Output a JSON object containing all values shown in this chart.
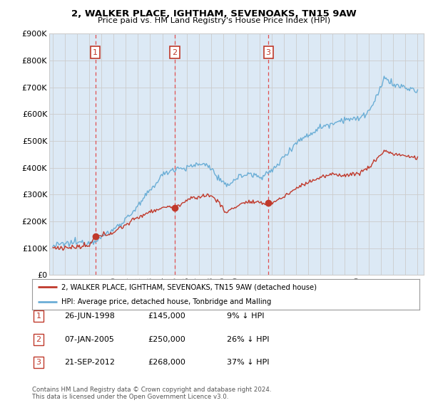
{
  "title": "2, WALKER PLACE, IGHTHAM, SEVENOAKS, TN15 9AW",
  "subtitle": "Price paid vs. HM Land Registry's House Price Index (HPI)",
  "ylim": [
    0,
    900000
  ],
  "yticks": [
    0,
    100000,
    200000,
    300000,
    400000,
    500000,
    600000,
    700000,
    800000,
    900000
  ],
  "ytick_labels": [
    "£0",
    "£100K",
    "£200K",
    "£300K",
    "£400K",
    "£500K",
    "£600K",
    "£700K",
    "£800K",
    "£900K"
  ],
  "xlim": [
    1994.7,
    2025.5
  ],
  "sales": [
    {
      "date_num": 1998.49,
      "price": 145000,
      "label": "1"
    },
    {
      "date_num": 2005.03,
      "price": 250000,
      "label": "2"
    },
    {
      "date_num": 2012.72,
      "price": 268000,
      "label": "3"
    }
  ],
  "sale_vlines": [
    1998.49,
    2005.03,
    2012.72
  ],
  "legend_line1": "2, WALKER PLACE, IGHTHAM, SEVENOAKS, TN15 9AW (detached house)",
  "legend_line2": "HPI: Average price, detached house, Tonbridge and Malling",
  "table_rows": [
    {
      "num": "1",
      "date": "26-JUN-1998",
      "price": "£145,000",
      "hpi": "9% ↓ HPI"
    },
    {
      "num": "2",
      "date": "07-JAN-2005",
      "price": "£250,000",
      "hpi": "26% ↓ HPI"
    },
    {
      "num": "3",
      "date": "21-SEP-2012",
      "price": "£268,000",
      "hpi": "37% ↓ HPI"
    }
  ],
  "footnote1": "Contains HM Land Registry data © Crown copyright and database right 2024.",
  "footnote2": "This data is licensed under the Open Government Licence v3.0.",
  "hpi_color": "#6baed6",
  "sale_color": "#c0392b",
  "vline_color": "#e05050",
  "grid_color": "#cccccc",
  "plot_bg": "#dce9f5",
  "fig_bg": "#ffffff"
}
